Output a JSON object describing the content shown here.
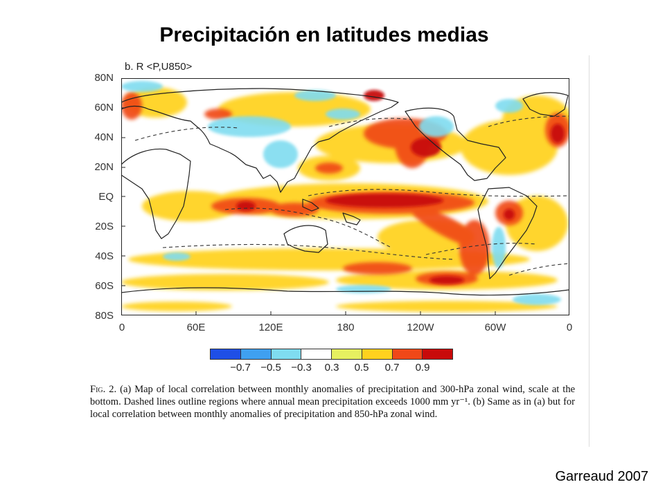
{
  "slide": {
    "title": "Precipitación en latitudes medias",
    "credit": "Garreaud 2007"
  },
  "figure": {
    "panel_label": "b. R <P,U850>",
    "lat_labels": [
      "80N",
      "60N",
      "40N",
      "20N",
      "EQ",
      "20S",
      "40S",
      "60S",
      "80S"
    ],
    "lon_labels": [
      "0",
      "60E",
      "120E",
      "180",
      "120W",
      "60W",
      "0"
    ],
    "colorbar": {
      "colors": [
        "#1f4fe6",
        "#3fa0f0",
        "#7fdcf0",
        "#ffffff",
        "#e6f060",
        "#ffd21e",
        "#f04818",
        "#c80a0a"
      ],
      "ticks": [
        "−0.7",
        "−0.5",
        "−0.3",
        "0.3",
        "0.5",
        "0.7",
        "0.9"
      ]
    },
    "caption": {
      "fig_label": "Fig. 2.",
      "text": "(a) Map of local correlation between monthly anomalies of precipitation and 300-hPa zonal wind, scale at the bottom. Dashed lines outline regions where annual mean precipitation exceeds 1000 mm yr⁻¹. (b) Same as in (a) but for local correlation between monthly anomalies of precipitation and 850-hPa zonal wind."
    }
  }
}
